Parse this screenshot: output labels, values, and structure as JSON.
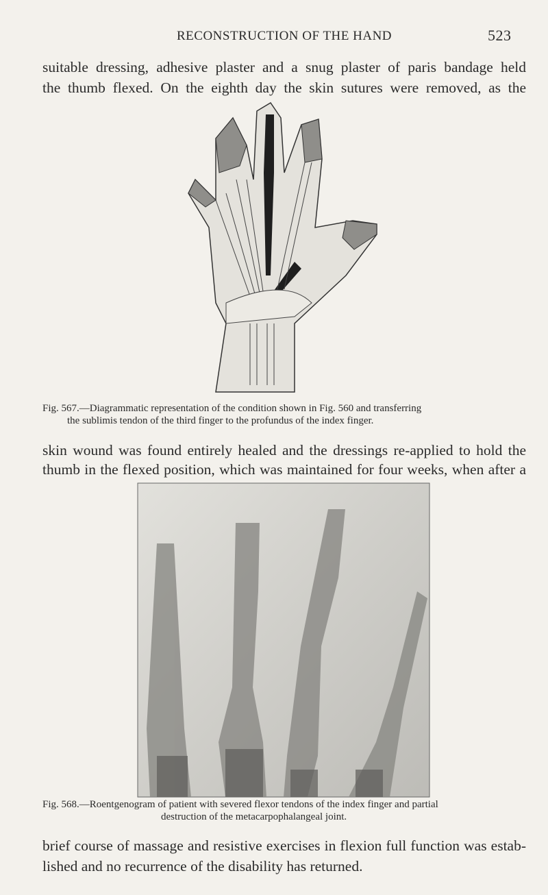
{
  "header": {
    "title": "RECONSTRUCTION OF THE HAND",
    "page_number": "523"
  },
  "paragraphs": [
    [
      "suitable dressing, adhesive plaster and a snug plaster of paris bandage held",
      "the thumb flexed. On the eighth day the skin sutures were removed, as the"
    ],
    [
      "skin wound was found entirely healed and the dressings re-applied to hold the",
      "thumb in the flexed position, which was maintained for four weeks, when after a"
    ],
    [
      "brief course of massage and resistive exercises in flexion full function was estab-",
      "lished and no recurrence of the disability has returned."
    ]
  ],
  "figures": [
    {
      "caption": [
        "Fig. 567.—Diagrammatic representation of the condition shown in Fig. 560 and transferring",
        "the sublimis tendon of the third finger to the profundus of the index finger."
      ]
    },
    {
      "caption": [
        "Fig. 568.—Roentgenogram of patient with severed flexor tendons of the index finger and partial",
        "destruction of the metacarpophalangeal joint."
      ]
    }
  ]
}
